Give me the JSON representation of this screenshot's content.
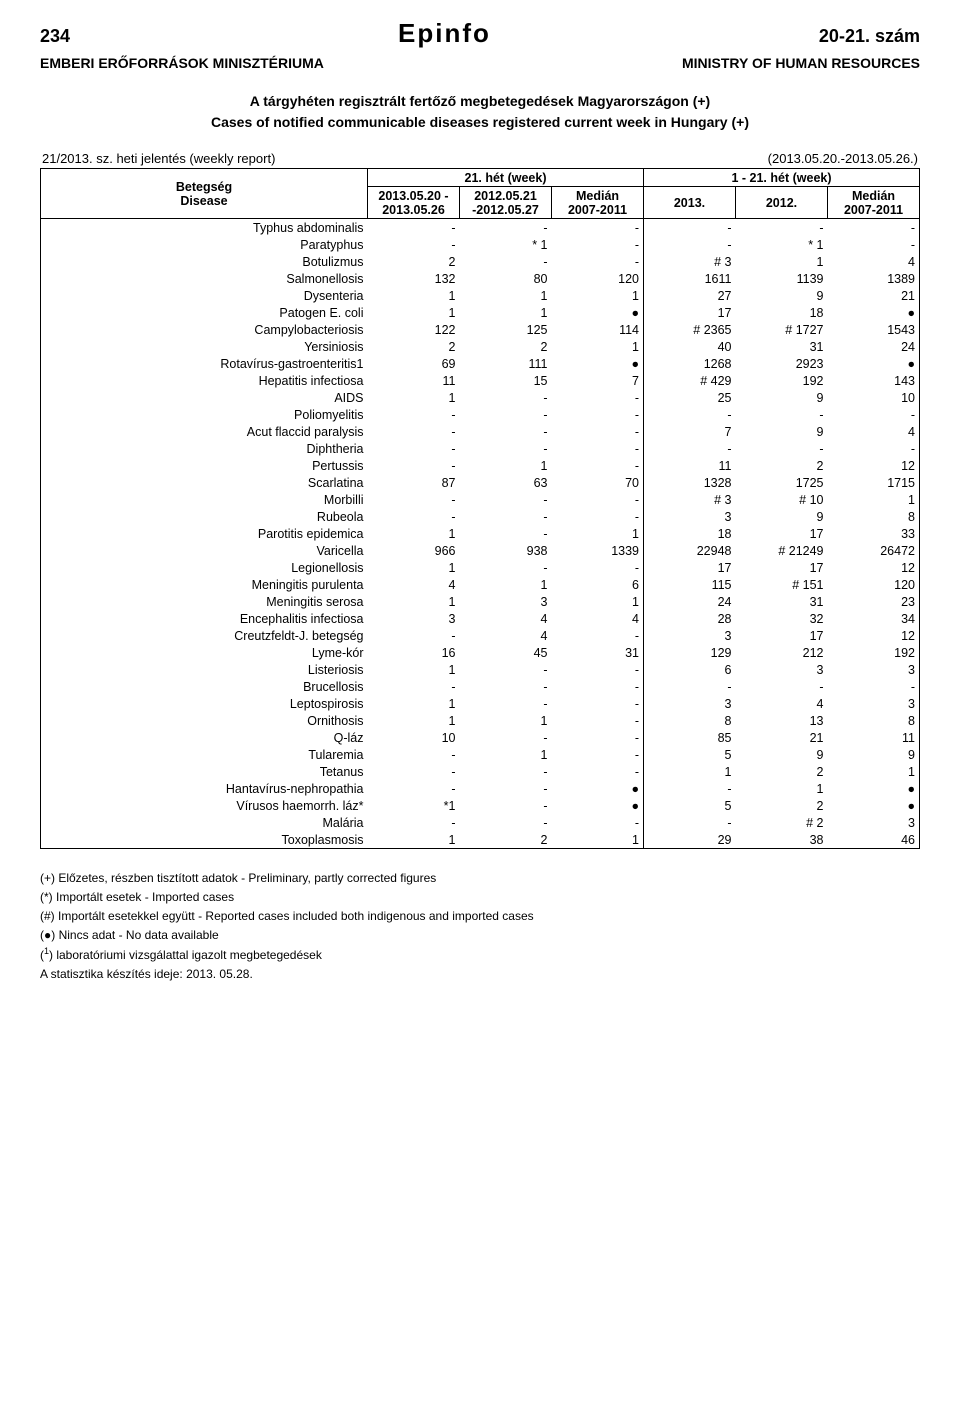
{
  "header": {
    "page_number": "234",
    "logo_text": "Epinfo",
    "issue": "20-21. szám",
    "org_hu": "EMBERI ERŐFORRÁSOK MINISZTÉRIUMA",
    "org_en": "MINISTRY OF HUMAN RESOURCES"
  },
  "titles": {
    "line1": "A tárgyhéten regisztrált fertőző megbetegedések Magyarországon (+)",
    "line2": "Cases of notified communicable diseases registered current week in Hungary (+)"
  },
  "report": {
    "left": "21/2013. sz. heti jelentés (weekly report)",
    "right": "(2013.05.20.-2013.05.26.)"
  },
  "table_headers": {
    "disease_hu": "Betegség",
    "disease_en": "Disease",
    "week21": "21. hét (week)",
    "week1_21": "1 - 21. hét (week)",
    "col1a": "2013.05.20 -",
    "col1b": "2013.05.26",
    "col2a": "2012.05.21",
    "col2b": "-2012.05.27",
    "median_a": "Medián",
    "median_b": "2007-2011",
    "col4": "2013.",
    "col5": "2012."
  },
  "rows": [
    {
      "name": "Typhus abdominalis",
      "c": [
        "-",
        "-",
        "-",
        "-",
        "-",
        "-"
      ]
    },
    {
      "name": "Paratyphus",
      "c": [
        "-",
        "* 1",
        "-",
        "-",
        "* 1",
        "-"
      ]
    },
    {
      "name": "Botulizmus",
      "c": [
        "2",
        "-",
        "-",
        "# 3",
        "1",
        "4"
      ]
    },
    {
      "name": "Salmonellosis",
      "c": [
        "132",
        "80",
        "120",
        "1611",
        "1139",
        "1389"
      ]
    },
    {
      "name": "Dysenteria",
      "c": [
        "1",
        "1",
        "1",
        "27",
        "9",
        "21"
      ]
    },
    {
      "name": "Patogen E. coli",
      "c": [
        "1",
        "1",
        "●",
        "17",
        "18",
        "●"
      ]
    },
    {
      "name": "Campylobacteriosis",
      "c": [
        "122",
        "125",
        "114",
        "# 2365",
        "# 1727",
        "1543"
      ]
    },
    {
      "name": "Yersiniosis",
      "c": [
        "2",
        "2",
        "1",
        "40",
        "31",
        "24"
      ]
    },
    {
      "name": "Rotavírus-gastroenteritis1",
      "c": [
        "69",
        "111",
        "●",
        "1268",
        "2923",
        "●"
      ]
    },
    {
      "name": "Hepatitis infectiosa",
      "c": [
        "11",
        "15",
        "7",
        "# 429",
        "192",
        "143"
      ]
    },
    {
      "name": "AIDS",
      "c": [
        "1",
        "-",
        "-",
        "25",
        "9",
        "10"
      ]
    },
    {
      "name": "Poliomyelitis",
      "c": [
        "-",
        "-",
        "-",
        "-",
        "-",
        "-"
      ]
    },
    {
      "name": "Acut flaccid paralysis",
      "c": [
        "-",
        "-",
        "-",
        "7",
        "9",
        "4"
      ]
    },
    {
      "name": "Diphtheria",
      "c": [
        "-",
        "-",
        "-",
        "-",
        "-",
        "-"
      ]
    },
    {
      "name": "Pertussis",
      "c": [
        "-",
        "1",
        "-",
        "11",
        "2",
        "12"
      ]
    },
    {
      "name": "Scarlatina",
      "c": [
        "87",
        "63",
        "70",
        "1328",
        "1725",
        "1715"
      ]
    },
    {
      "name": "Morbilli",
      "c": [
        "-",
        "-",
        "-",
        "# 3",
        "# 10",
        "1"
      ]
    },
    {
      "name": "Rubeola",
      "c": [
        "-",
        "-",
        "-",
        "3",
        "9",
        "8"
      ]
    },
    {
      "name": "Parotitis epidemica",
      "c": [
        "1",
        "-",
        "1",
        "18",
        "17",
        "33"
      ]
    },
    {
      "name": "Varicella",
      "c": [
        "966",
        "938",
        "1339",
        "22948",
        "# 21249",
        "26472"
      ]
    },
    {
      "name": "Legionellosis",
      "c": [
        "1",
        "-",
        "-",
        "17",
        "17",
        "12"
      ]
    },
    {
      "name": "Meningitis purulenta",
      "c": [
        "4",
        "1",
        "6",
        "115",
        "# 151",
        "120"
      ]
    },
    {
      "name": "Meningitis serosa",
      "c": [
        "1",
        "3",
        "1",
        "24",
        "31",
        "23"
      ]
    },
    {
      "name": "Encephalitis infectiosa",
      "c": [
        "3",
        "4",
        "4",
        "28",
        "32",
        "34"
      ]
    },
    {
      "name": "Creutzfeldt-J. betegség",
      "c": [
        "-",
        "4",
        "-",
        "3",
        "17",
        "12"
      ]
    },
    {
      "name": "Lyme-kór",
      "c": [
        "16",
        "45",
        "31",
        "129",
        "212",
        "192"
      ]
    },
    {
      "name": "Listeriosis",
      "c": [
        "1",
        "-",
        "-",
        "6",
        "3",
        "3"
      ]
    },
    {
      "name": "Brucellosis",
      "c": [
        "-",
        "-",
        "-",
        "-",
        "-",
        "-"
      ]
    },
    {
      "name": "Leptospirosis",
      "c": [
        "1",
        "-",
        "-",
        "3",
        "4",
        "3"
      ]
    },
    {
      "name": "Ornithosis",
      "c": [
        "1",
        "1",
        "-",
        "8",
        "13",
        "8"
      ]
    },
    {
      "name": "Q-láz",
      "c": [
        "10",
        "-",
        "-",
        "85",
        "21",
        "11"
      ]
    },
    {
      "name": "Tularemia",
      "c": [
        "-",
        "1",
        "-",
        "5",
        "9",
        "9"
      ]
    },
    {
      "name": "Tetanus",
      "c": [
        "-",
        "-",
        "-",
        "1",
        "2",
        "1"
      ]
    },
    {
      "name": "Hantavírus-nephropathia",
      "c": [
        "-",
        "-",
        "●",
        "-",
        "1",
        "●"
      ]
    },
    {
      "name": "Vírusos haemorrh. láz*",
      "c": [
        "*1",
        "-",
        "●",
        "5",
        "2",
        "●"
      ]
    },
    {
      "name": "Malária",
      "c": [
        "-",
        "-",
        "-",
        "-",
        "# 2",
        "3"
      ]
    },
    {
      "name": "Toxoplasmosis",
      "c": [
        "1",
        "2",
        "1",
        "29",
        "38",
        "46"
      ]
    }
  ],
  "footnotes": {
    "f1": "(+) Előzetes, részben tisztított adatok - Preliminary, partly corrected figures",
    "f2": "(*) Importált esetek - Imported cases",
    "f3": "(#) Importált esetekkel együtt - Reported cases included both indigenous and imported cases",
    "f4": "(●) Nincs adat - No data available",
    "f5a": "(",
    "f5sup": "1",
    "f5b": ") laboratóriumi vizsgálattal igazolt megbetegedések",
    "f6": "A statisztika készítés ideje: 2013. 05.28."
  },
  "style": {
    "background": "#ffffff",
    "text_color": "#000000",
    "border_color": "#000000"
  }
}
